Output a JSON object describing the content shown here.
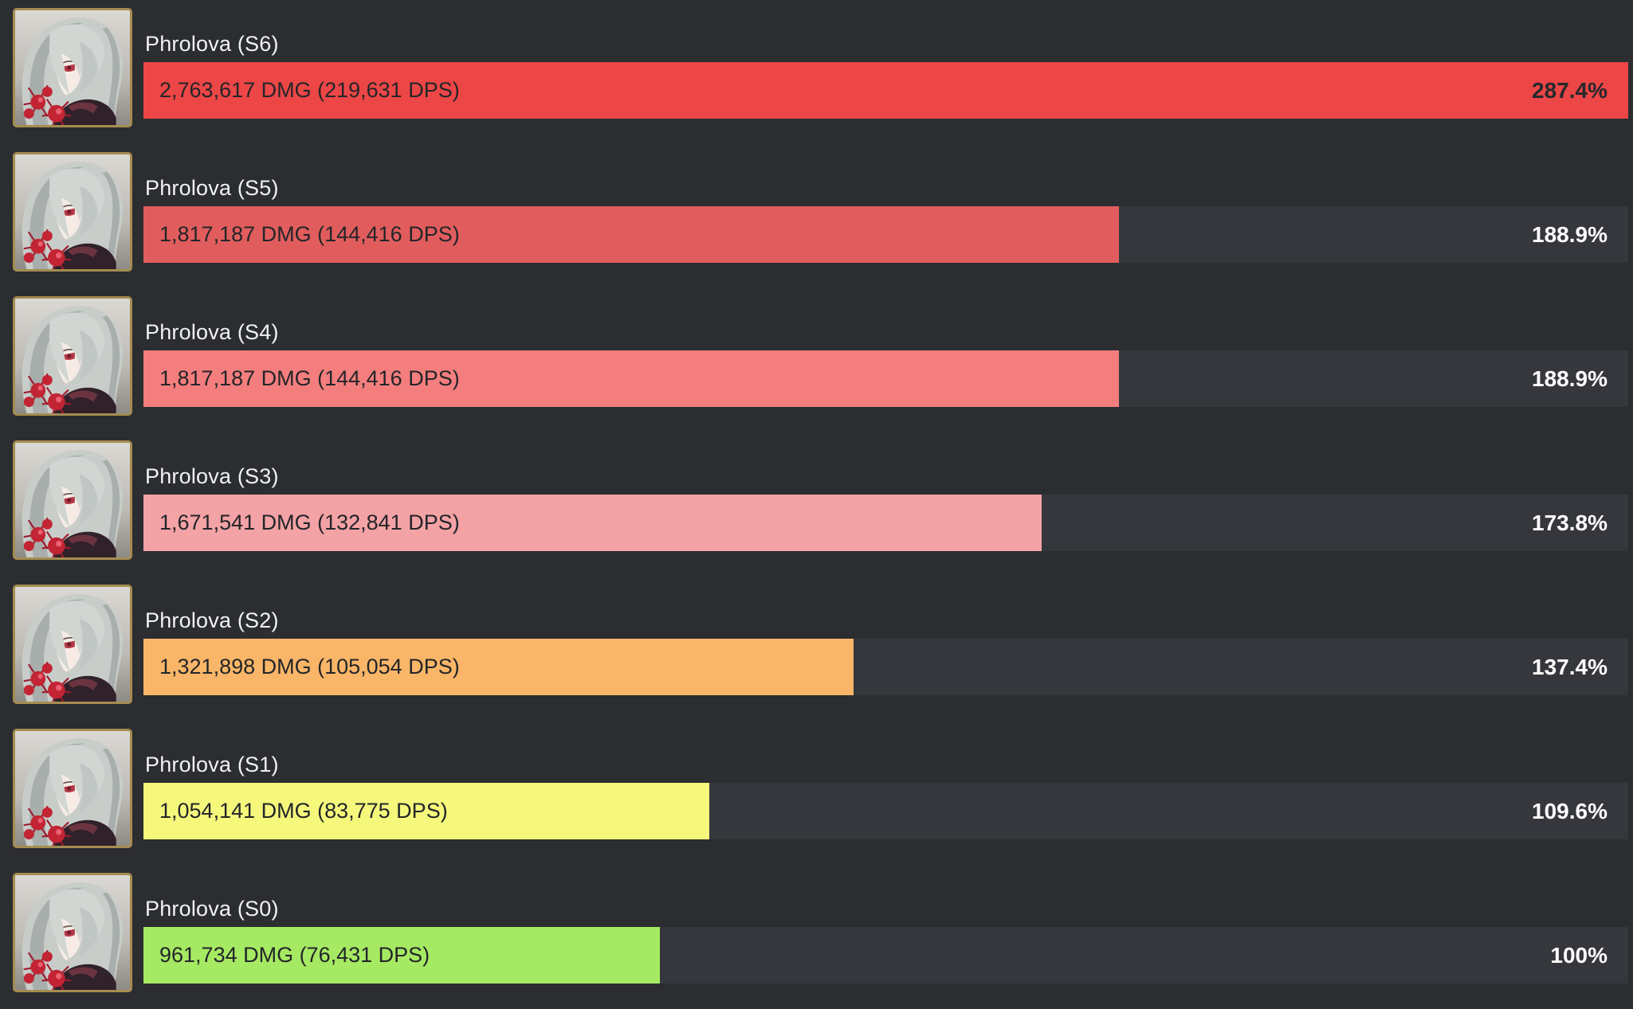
{
  "chart_data": {
    "type": "bar",
    "orientation": "horizontal",
    "title": "",
    "xlabel": "",
    "ylabel": "",
    "legend": false,
    "grid": false,
    "max_pct": 287.4,
    "note": "Each bar width is proportional to pct relative to max_pct (S6 row fills the track).",
    "rows": [
      {
        "label": "Phrolova (S6)",
        "dmg": 2763617,
        "dps": 219631,
        "bar_text": "2,763,617 DMG (219,631 DPS)",
        "pct": 287.4,
        "pct_label": "287.4%",
        "color": "#ec4646",
        "pct_on_bar": true
      },
      {
        "label": "Phrolova (S5)",
        "dmg": 1817187,
        "dps": 144416,
        "bar_text": "1,817,187 DMG (144,416 DPS)",
        "pct": 188.9,
        "pct_label": "188.9%",
        "color": "#e15d5d",
        "pct_on_bar": false
      },
      {
        "label": "Phrolova (S4)",
        "dmg": 1817187,
        "dps": 144416,
        "bar_text": "1,817,187 DMG (144,416 DPS)",
        "pct": 188.9,
        "pct_label": "188.9%",
        "color": "#f47e7e",
        "pct_on_bar": false
      },
      {
        "label": "Phrolova (S3)",
        "dmg": 1671541,
        "dps": 132841,
        "bar_text": "1,671,541 DMG (132,841 DPS)",
        "pct": 173.8,
        "pct_label": "173.8%",
        "color": "#f3a2a5",
        "pct_on_bar": false
      },
      {
        "label": "Phrolova (S2)",
        "dmg": 1321898,
        "dps": 105054,
        "bar_text": "1,321,898 DMG (105,054 DPS)",
        "pct": 137.4,
        "pct_label": "137.4%",
        "color": "#f9b668",
        "pct_on_bar": false
      },
      {
        "label": "Phrolova (S1)",
        "dmg": 1054141,
        "dps": 83775,
        "bar_text": "1,054,141 DMG (83,775 DPS)",
        "pct": 109.6,
        "pct_label": "109.6%",
        "color": "#f5f87b",
        "pct_on_bar": false
      },
      {
        "label": "Phrolova (S0)",
        "dmg": 961734,
        "dps": 76431,
        "bar_text": "961,734 DMG (76,431 DPS)",
        "pct": 100.0,
        "pct_label": "100%",
        "color": "#a6e963",
        "pct_on_bar": false
      }
    ]
  },
  "avatar": {
    "character": "Phrolova",
    "border_color": "#a58c4f"
  },
  "colors": {
    "page_bg": "#2b2d31",
    "track_bg": "#35373c",
    "label_text": "#f1f2f4",
    "bar_text": "#232529",
    "pct_text": "#ffffff",
    "pct_text_on_bar": "#26282c"
  }
}
